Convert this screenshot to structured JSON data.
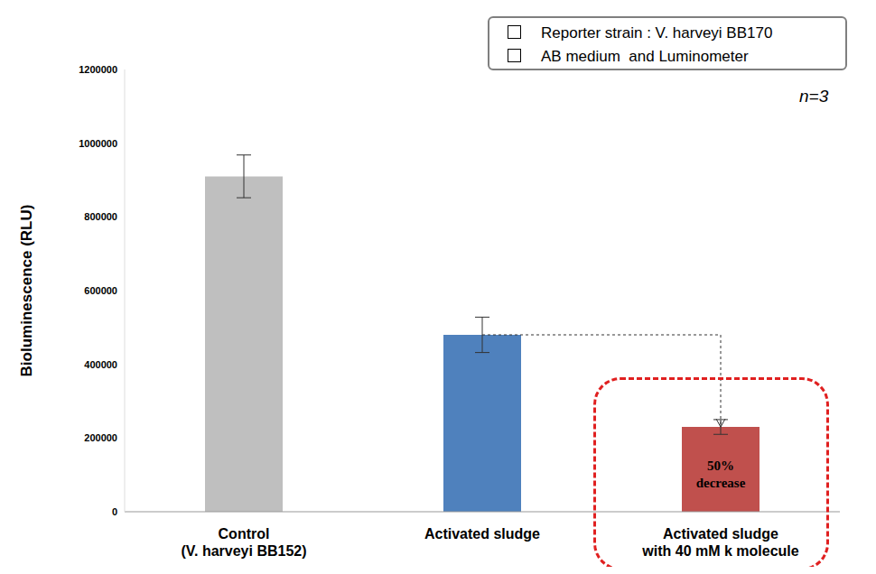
{
  "chart_data": {
    "type": "bar",
    "y_label": "Bioluminescence (RLU)",
    "categories": [
      "Control\n(V. harveyi BB152)",
      "Activated sludge",
      "Activated sludge\nwith 40 mM k molecule"
    ],
    "values": [
      910000,
      480000,
      230000
    ],
    "errors": [
      58000,
      48000,
      20000
    ],
    "colors": [
      "#bfbfbf",
      "#4f81bd",
      "#c0504d"
    ],
    "ylim": [
      0,
      1200000
    ],
    "yticks": [
      0,
      200000,
      400000,
      600000,
      800000,
      1000000,
      1200000
    ],
    "grid": false,
    "annotations": [
      "Reporter strain : V. harveyi BB170",
      "AB medium  and Luminometer",
      "n=3",
      "50% decrease"
    ]
  }
}
